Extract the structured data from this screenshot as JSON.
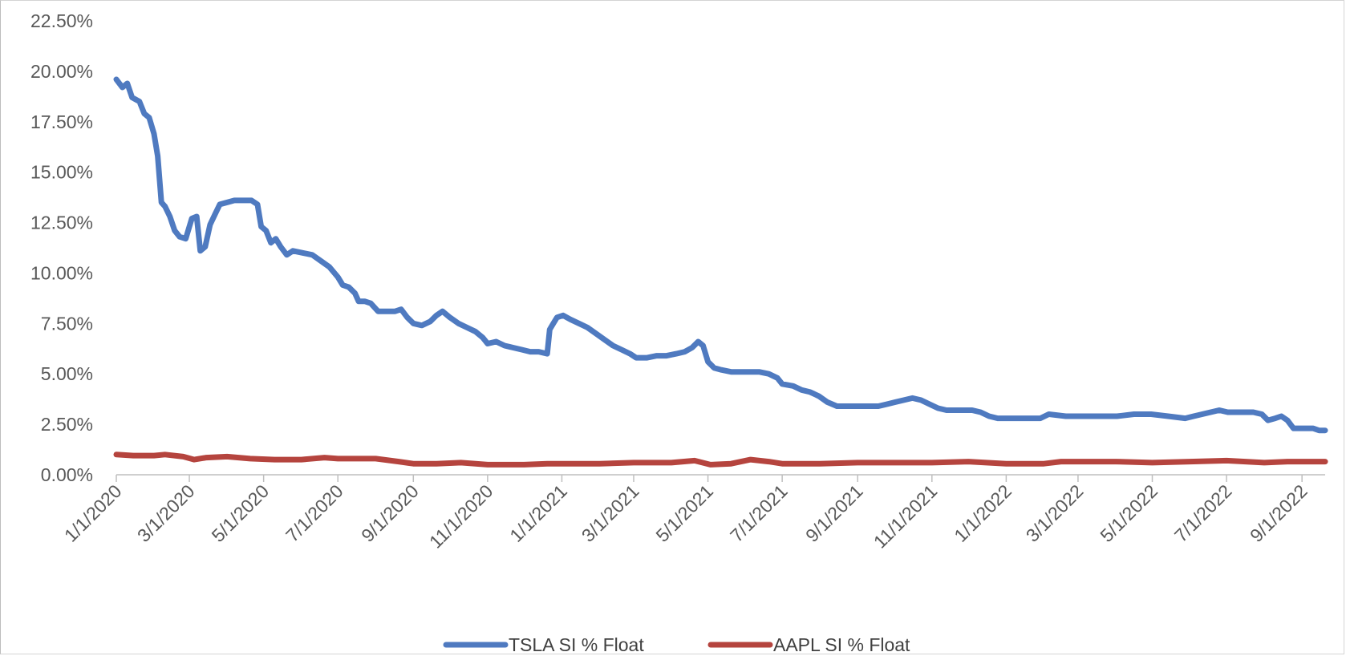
{
  "chart_data": {
    "type": "line",
    "title": "",
    "xlabel": "",
    "ylabel": "",
    "ylim": [
      0,
      22.5
    ],
    "ytick_labels": [
      "0.00%",
      "2.50%",
      "5.00%",
      "7.50%",
      "10.00%",
      "12.50%",
      "15.00%",
      "17.50%",
      "20.00%",
      "22.50%"
    ],
    "ytick_values": [
      0,
      2.5,
      5,
      7.5,
      10,
      12.5,
      15,
      17.5,
      20,
      22.5
    ],
    "xlim": [
      "1/1/2020",
      "9/20/2022"
    ],
    "xtick_labels": [
      "1/1/2020",
      "3/1/2020",
      "5/1/2020",
      "7/1/2020",
      "9/1/2020",
      "11/1/2020",
      "1/1/2021",
      "3/1/2021",
      "5/1/2021",
      "7/1/2021",
      "9/1/2021",
      "11/1/2021",
      "1/1/2022",
      "3/1/2022",
      "5/1/2022",
      "7/1/2022",
      "9/1/2022"
    ],
    "grid": false,
    "legend_position": "bottom",
    "series": [
      {
        "name": "TSLA SI % Float",
        "color": "#4f7ac0",
        "points": [
          [
            "1/1/2020",
            19.6
          ],
          [
            "1/6/2020",
            19.2
          ],
          [
            "1/10/2020",
            19.4
          ],
          [
            "1/14/2020",
            18.7
          ],
          [
            "1/20/2020",
            18.5
          ],
          [
            "1/24/2020",
            17.9
          ],
          [
            "1/28/2020",
            17.7
          ],
          [
            "2/1/2020",
            16.9
          ],
          [
            "2/4/2020",
            15.8
          ],
          [
            "2/7/2020",
            13.5
          ],
          [
            "2/10/2020",
            13.3
          ],
          [
            "2/14/2020",
            12.8
          ],
          [
            "2/18/2020",
            12.1
          ],
          [
            "2/22/2020",
            11.8
          ],
          [
            "2/27/2020",
            11.7
          ],
          [
            "3/3/2020",
            12.7
          ],
          [
            "3/7/2020",
            12.8
          ],
          [
            "3/10/2020",
            11.1
          ],
          [
            "3/14/2020",
            11.3
          ],
          [
            "3/18/2020",
            12.4
          ],
          [
            "3/22/2020",
            12.9
          ],
          [
            "3/26/2020",
            13.4
          ],
          [
            "4/1/2020",
            13.5
          ],
          [
            "4/7/2020",
            13.6
          ],
          [
            "4/14/2020",
            13.6
          ],
          [
            "4/21/2020",
            13.6
          ],
          [
            "4/26/2020",
            13.4
          ],
          [
            "4/29/2020",
            12.3
          ],
          [
            "5/3/2020",
            12.1
          ],
          [
            "5/7/2020",
            11.5
          ],
          [
            "5/11/2020",
            11.7
          ],
          [
            "5/15/2020",
            11.3
          ],
          [
            "5/20/2020",
            10.9
          ],
          [
            "5/25/2020",
            11.1
          ],
          [
            "6/2/2020",
            11.0
          ],
          [
            "6/10/2020",
            10.9
          ],
          [
            "6/17/2020",
            10.6
          ],
          [
            "6/24/2020",
            10.3
          ],
          [
            "7/1/2020",
            9.8
          ],
          [
            "7/5/2020",
            9.4
          ],
          [
            "7/10/2020",
            9.3
          ],
          [
            "7/15/2020",
            9.0
          ],
          [
            "7/18/2020",
            8.6
          ],
          [
            "7/23/2020",
            8.6
          ],
          [
            "7/28/2020",
            8.5
          ],
          [
            "8/3/2020",
            8.1
          ],
          [
            "8/10/2020",
            8.1
          ],
          [
            "8/17/2020",
            8.1
          ],
          [
            "8/22/2020",
            8.2
          ],
          [
            "8/27/2020",
            7.8
          ],
          [
            "9/1/2020",
            7.5
          ],
          [
            "9/8/2020",
            7.4
          ],
          [
            "9/15/2020",
            7.6
          ],
          [
            "9/20/2020",
            7.9
          ],
          [
            "9/25/2020",
            8.1
          ],
          [
            "10/1/2020",
            7.8
          ],
          [
            "10/8/2020",
            7.5
          ],
          [
            "10/15/2020",
            7.3
          ],
          [
            "10/22/2020",
            7.1
          ],
          [
            "10/28/2020",
            6.8
          ],
          [
            "11/1/2020",
            6.5
          ],
          [
            "11/8/2020",
            6.6
          ],
          [
            "11/15/2020",
            6.4
          ],
          [
            "11/22/2020",
            6.3
          ],
          [
            "11/29/2020",
            6.2
          ],
          [
            "12/6/2020",
            6.1
          ],
          [
            "12/13/2020",
            6.1
          ],
          [
            "12/20/2020",
            6.0
          ],
          [
            "12/22/2020",
            7.2
          ],
          [
            "12/25/2020",
            7.5
          ],
          [
            "12/28/2020",
            7.8
          ],
          [
            "1/2/2021",
            7.9
          ],
          [
            "1/8/2021",
            7.7
          ],
          [
            "1/15/2021",
            7.5
          ],
          [
            "1/22/2021",
            7.3
          ],
          [
            "1/29/2021",
            7.0
          ],
          [
            "2/5/2021",
            6.7
          ],
          [
            "2/12/2021",
            6.4
          ],
          [
            "2/19/2021",
            6.2
          ],
          [
            "2/26/2021",
            6.0
          ],
          [
            "3/3/2021",
            5.8
          ],
          [
            "3/12/2021",
            5.8
          ],
          [
            "3/20/2021",
            5.9
          ],
          [
            "3/28/2021",
            5.9
          ],
          [
            "4/5/2021",
            6.0
          ],
          [
            "4/12/2021",
            6.1
          ],
          [
            "4/18/2021",
            6.3
          ],
          [
            "4/23/2021",
            6.6
          ],
          [
            "4/27/2021",
            6.4
          ],
          [
            "5/1/2021",
            5.6
          ],
          [
            "5/6/2021",
            5.3
          ],
          [
            "5/12/2021",
            5.2
          ],
          [
            "5/20/2021",
            5.1
          ],
          [
            "5/28/2021",
            5.1
          ],
          [
            "6/5/2021",
            5.1
          ],
          [
            "6/12/2021",
            5.1
          ],
          [
            "6/20/2021",
            5.0
          ],
          [
            "6/27/2021",
            4.8
          ],
          [
            "7/1/2021",
            4.5
          ],
          [
            "7/10/2021",
            4.4
          ],
          [
            "7/17/2021",
            4.2
          ],
          [
            "7/24/2021",
            4.1
          ],
          [
            "7/31/2021",
            3.9
          ],
          [
            "8/7/2021",
            3.6
          ],
          [
            "8/15/2021",
            3.4
          ],
          [
            "8/22/2021",
            3.4
          ],
          [
            "9/1/2021",
            3.4
          ],
          [
            "9/10/2021",
            3.4
          ],
          [
            "9/18/2021",
            3.4
          ],
          [
            "9/25/2021",
            3.5
          ],
          [
            "10/2/2021",
            3.6
          ],
          [
            "10/9/2021",
            3.7
          ],
          [
            "10/16/2021",
            3.8
          ],
          [
            "10/23/2021",
            3.7
          ],
          [
            "10/30/2021",
            3.5
          ],
          [
            "11/6/2021",
            3.3
          ],
          [
            "11/13/2021",
            3.2
          ],
          [
            "11/20/2021",
            3.2
          ],
          [
            "11/27/2021",
            3.2
          ],
          [
            "12/4/2021",
            3.2
          ],
          [
            "12/11/2021",
            3.1
          ],
          [
            "12/18/2021",
            2.9
          ],
          [
            "12/25/2021",
            2.8
          ],
          [
            "1/1/2022",
            2.8
          ],
          [
            "1/15/2022",
            2.8
          ],
          [
            "1/29/2022",
            2.8
          ],
          [
            "2/5/2022",
            3.0
          ],
          [
            "2/19/2022",
            2.9
          ],
          [
            "3/5/2022",
            2.9
          ],
          [
            "3/19/2022",
            2.9
          ],
          [
            "4/2/2022",
            2.9
          ],
          [
            "4/16/2022",
            3.0
          ],
          [
            "4/30/2022",
            3.0
          ],
          [
            "5/14/2022",
            2.9
          ],
          [
            "5/28/2022",
            2.8
          ],
          [
            "6/4/2022",
            2.9
          ],
          [
            "6/11/2022",
            3.0
          ],
          [
            "6/18/2022",
            3.1
          ],
          [
            "6/25/2022",
            3.2
          ],
          [
            "7/2/2022",
            3.1
          ],
          [
            "7/9/2022",
            3.1
          ],
          [
            "7/16/2022",
            3.1
          ],
          [
            "7/23/2022",
            3.1
          ],
          [
            "7/30/2022",
            3.0
          ],
          [
            "8/4/2022",
            2.7
          ],
          [
            "8/10/2022",
            2.8
          ],
          [
            "8/15/2022",
            2.9
          ],
          [
            "8/20/2022",
            2.7
          ],
          [
            "8/25/2022",
            2.3
          ],
          [
            "9/1/2022",
            2.3
          ],
          [
            "9/10/2022",
            2.3
          ],
          [
            "9/15/2022",
            2.2
          ],
          [
            "9/20/2022",
            2.2
          ]
        ]
      },
      {
        "name": "AAPL SI % Float",
        "color": "#b5443e",
        "points": [
          [
            "1/1/2020",
            1.0
          ],
          [
            "1/15/2020",
            0.95
          ],
          [
            "2/1/2020",
            0.95
          ],
          [
            "2/10/2020",
            1.0
          ],
          [
            "2/25/2020",
            0.9
          ],
          [
            "3/5/2020",
            0.75
          ],
          [
            "3/15/2020",
            0.85
          ],
          [
            "4/1/2020",
            0.9
          ],
          [
            "4/20/2020",
            0.8
          ],
          [
            "5/10/2020",
            0.75
          ],
          [
            "6/1/2020",
            0.75
          ],
          [
            "6/20/2020",
            0.85
          ],
          [
            "7/1/2020",
            0.8
          ],
          [
            "8/1/2020",
            0.8
          ],
          [
            "8/20/2020",
            0.65
          ],
          [
            "9/1/2020",
            0.55
          ],
          [
            "9/20/2020",
            0.55
          ],
          [
            "10/10/2020",
            0.6
          ],
          [
            "11/1/2020",
            0.5
          ],
          [
            "12/1/2020",
            0.5
          ],
          [
            "12/20/2020",
            0.55
          ],
          [
            "1/1/2021",
            0.55
          ],
          [
            "2/1/2021",
            0.55
          ],
          [
            "3/1/2021",
            0.6
          ],
          [
            "4/1/2021",
            0.6
          ],
          [
            "4/20/2021",
            0.7
          ],
          [
            "5/3/2021",
            0.5
          ],
          [
            "5/20/2021",
            0.55
          ],
          [
            "6/5/2021",
            0.75
          ],
          [
            "6/20/2021",
            0.65
          ],
          [
            "7/1/2021",
            0.55
          ],
          [
            "8/1/2021",
            0.55
          ],
          [
            "9/1/2021",
            0.6
          ],
          [
            "10/1/2021",
            0.6
          ],
          [
            "11/1/2021",
            0.6
          ],
          [
            "12/1/2021",
            0.65
          ],
          [
            "1/1/2022",
            0.55
          ],
          [
            "2/1/2022",
            0.55
          ],
          [
            "2/15/2022",
            0.65
          ],
          [
            "4/1/2022",
            0.65
          ],
          [
            "5/1/2022",
            0.6
          ],
          [
            "6/1/2022",
            0.65
          ],
          [
            "7/1/2022",
            0.7
          ],
          [
            "8/1/2022",
            0.6
          ],
          [
            "8/20/2022",
            0.65
          ],
          [
            "9/20/2022",
            0.65
          ]
        ]
      }
    ]
  }
}
